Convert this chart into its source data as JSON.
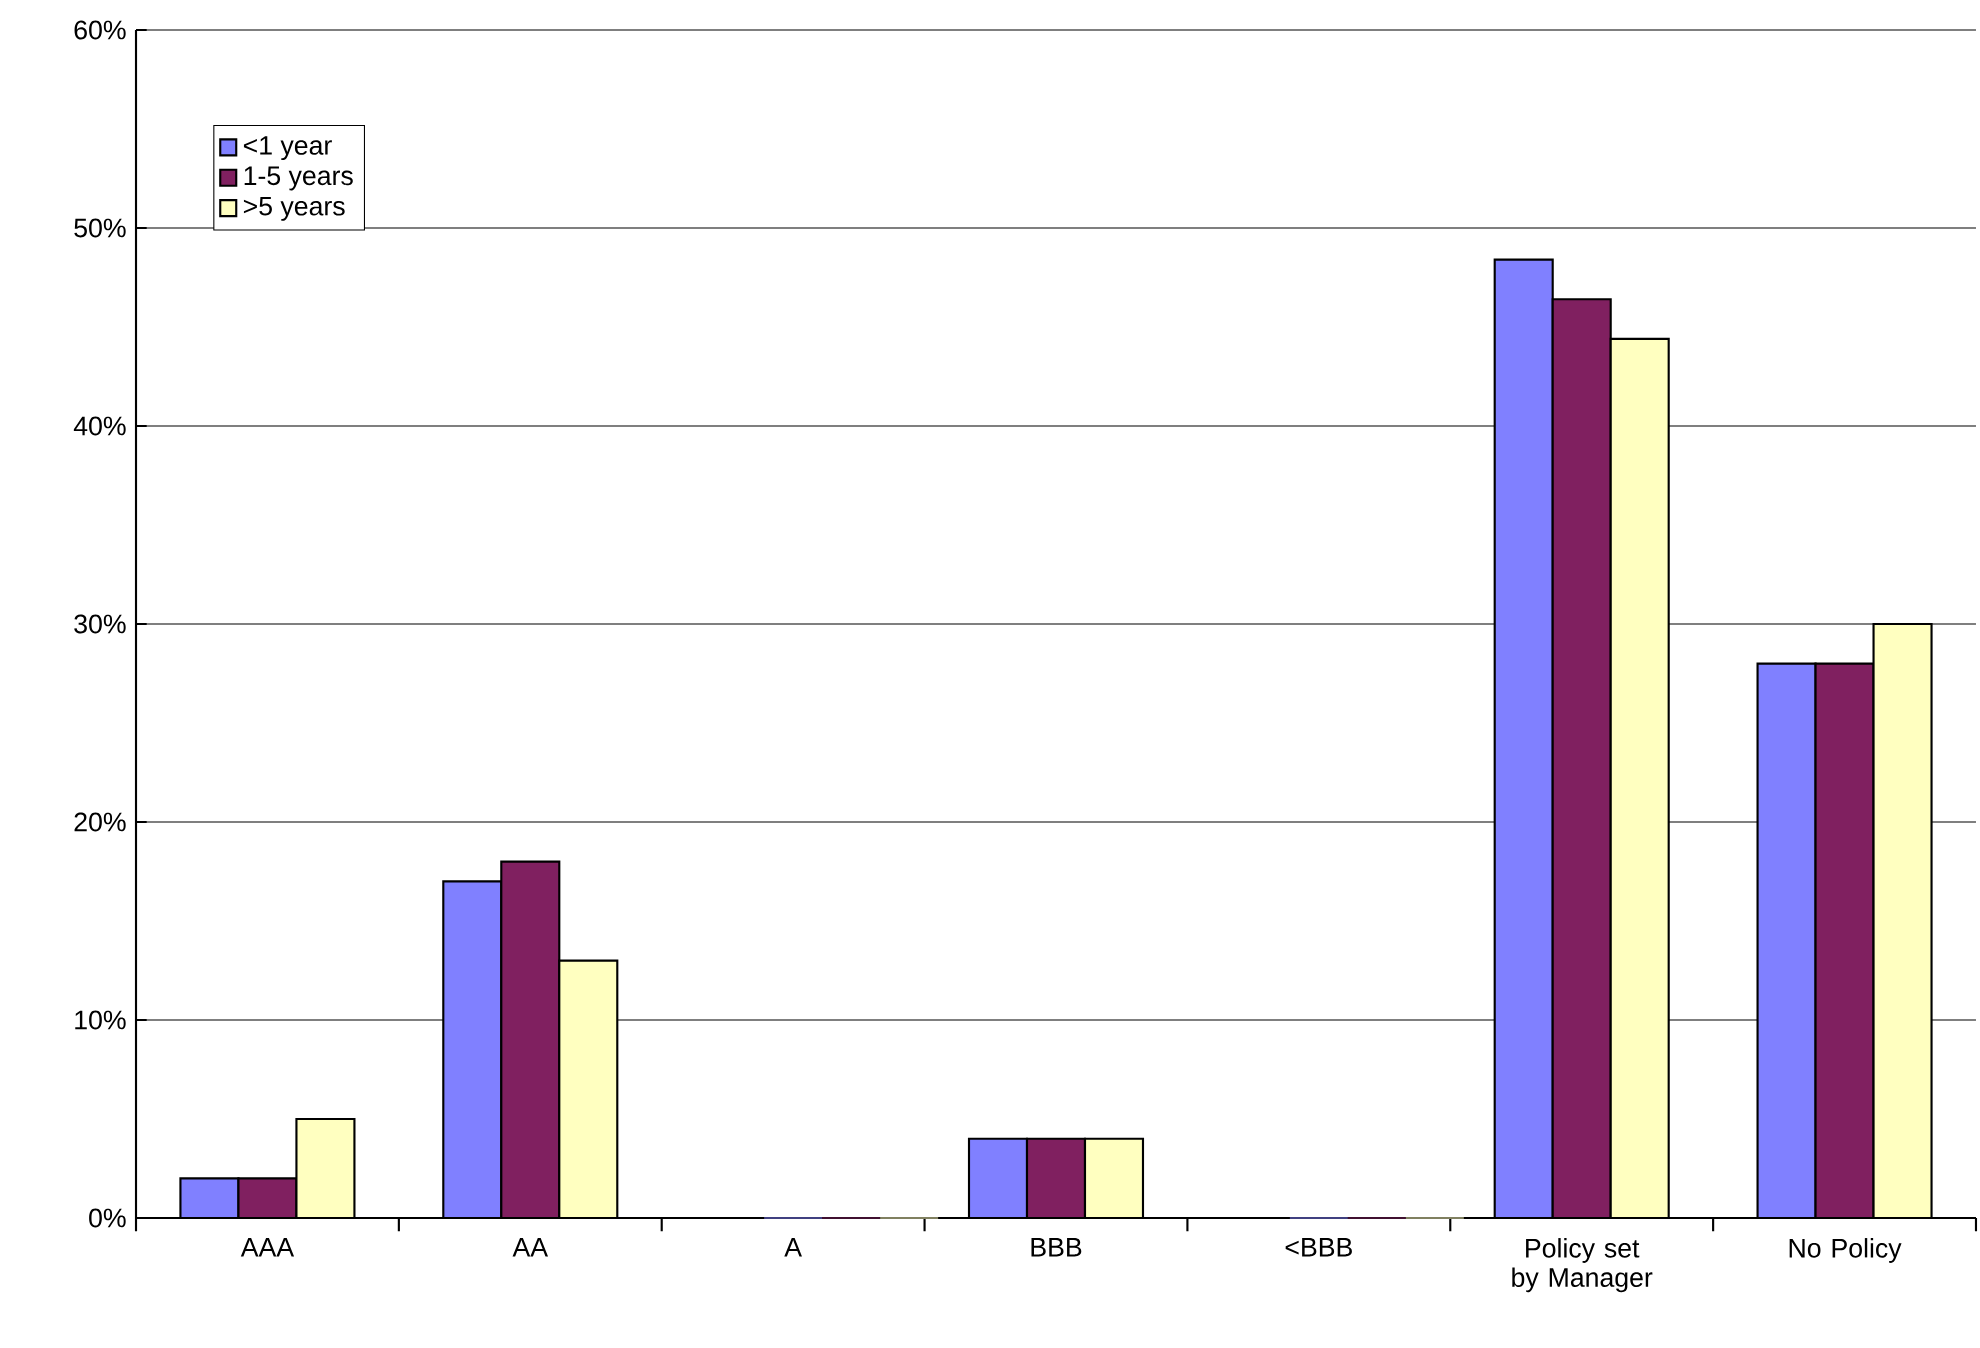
{
  "chart_data": {
    "type": "bar",
    "categories": [
      "AAA",
      "AA",
      "A",
      "BBB",
      "<BBB",
      "Policy set by Manager",
      "No Policy"
    ],
    "series": [
      {
        "name": "<1 year",
        "color": "#8080ff",
        "values": [
          2,
          17,
          0,
          4,
          0,
          48.4,
          28
        ]
      },
      {
        "name": "1-5 years",
        "color": "#802060",
        "values": [
          2,
          18,
          0,
          4,
          0,
          46.4,
          28
        ]
      },
      {
        "name": ">5 years",
        "color": "#ffffc0",
        "values": [
          5,
          13,
          0,
          4,
          0,
          44.4,
          30
        ]
      }
    ],
    "ylim": [
      0,
      60
    ],
    "yticks": [
      {
        "value": 0,
        "label": "0%"
      },
      {
        "value": 10,
        "label": "10%"
      },
      {
        "value": 20,
        "label": "20%"
      },
      {
        "value": 30,
        "label": "30%"
      },
      {
        "value": 40,
        "label": "40%"
      },
      {
        "value": 50,
        "label": "50%"
      },
      {
        "value": 60,
        "label": "60%"
      }
    ],
    "grid": "y",
    "legend": "top left"
  }
}
